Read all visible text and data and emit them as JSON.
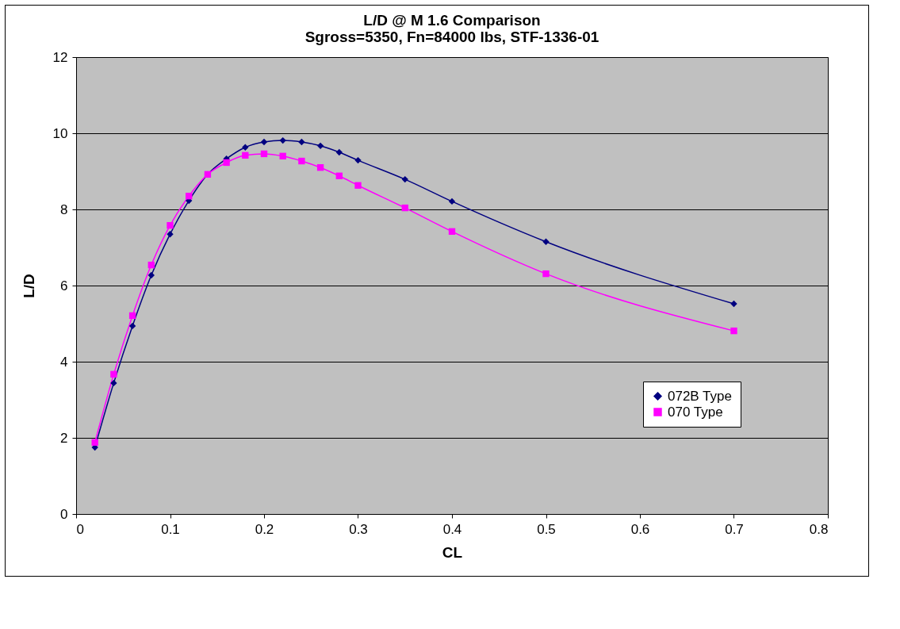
{
  "chart_data": {
    "type": "line",
    "title": "L/D @ M 1.6 Comparison",
    "subtitle": "Sgross=5350, Fn=84000 lbs, STF-1336-01",
    "xlabel": "CL",
    "ylabel": "L/D",
    "x": [
      0.02,
      0.04,
      0.06,
      0.08,
      0.1,
      0.12,
      0.14,
      0.16,
      0.18,
      0.2,
      0.22,
      0.24,
      0.26,
      0.28,
      0.3,
      0.35,
      0.4,
      0.5,
      0.7
    ],
    "series": [
      {
        "name": "072B Type",
        "color": "#000080",
        "marker": "diamond",
        "values": [
          1.75,
          3.44,
          4.94,
          6.27,
          7.35,
          8.23,
          8.92,
          9.33,
          9.63,
          9.77,
          9.81,
          9.77,
          9.67,
          9.5,
          9.29,
          8.79,
          8.21,
          7.15,
          5.52
        ]
      },
      {
        "name": "070 Type",
        "color": "#ff00ff",
        "marker": "square",
        "values": [
          1.88,
          3.67,
          5.21,
          6.54,
          7.58,
          8.35,
          8.92,
          9.23,
          9.42,
          9.46,
          9.4,
          9.27,
          9.1,
          8.88,
          8.63,
          8.04,
          7.42,
          6.31,
          4.81
        ]
      }
    ],
    "xlim": [
      0,
      0.8
    ],
    "xticks": [
      0,
      0.1,
      0.2,
      0.3,
      0.4,
      0.5,
      0.6,
      0.7,
      0.8
    ],
    "ylim": [
      0,
      12
    ],
    "yticks": [
      0,
      2,
      4,
      6,
      8,
      10,
      12
    ],
    "grid": "y",
    "legend": "bottom right",
    "line_style": "solid"
  }
}
